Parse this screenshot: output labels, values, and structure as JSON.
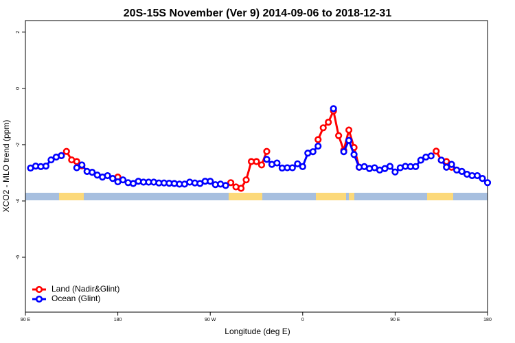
{
  "chart_data": {
    "type": "line",
    "title": "20S-15S November (Ver 9)   2014-09-06 to 2018-12-31",
    "x_label": "Longitude (deg E)",
    "y_label": "XCO2 - MLO trend (ppm)",
    "xlim": [
      90,
      540
    ],
    "xticks": [
      {
        "value": 90,
        "label": "90 E"
      },
      {
        "value": 180,
        "label": "180"
      },
      {
        "value": 270,
        "label": "90 W"
      },
      {
        "value": 360,
        "label": "0"
      },
      {
        "value": 450,
        "label": "90 E"
      },
      {
        "value": 540,
        "label": "180"
      }
    ],
    "ylim": [
      -7.95,
      2.41
    ],
    "yticks": [
      2,
      0,
      -2,
      -4,
      -6
    ],
    "legend": "bottom-left",
    "x": [
      95,
      100,
      105,
      110,
      115,
      120,
      125,
      130,
      135,
      140,
      145,
      150,
      155,
      160,
      165,
      170,
      175,
      180,
      185,
      190,
      195,
      200,
      205,
      210,
      215,
      220,
      225,
      230,
      235,
      240,
      245,
      250,
      255,
      260,
      265,
      270,
      275,
      280,
      285,
      290,
      295,
      300,
      305,
      310,
      315,
      320,
      325,
      330,
      335,
      340,
      345,
      350,
      355,
      360,
      365,
      370,
      375,
      380,
      385,
      390,
      395,
      400,
      405,
      410,
      415,
      420,
      425,
      430,
      435,
      440,
      445,
      450,
      455,
      460,
      465,
      470,
      475,
      480,
      485,
      490,
      495,
      500,
      505,
      510,
      515,
      520,
      525,
      530,
      535,
      540
    ],
    "series": [
      {
        "name": "Land (Nadir&Glint)",
        "color": "#ff0000",
        "values": [
          null,
          null,
          null,
          null,
          null,
          null,
          -2.39,
          -2.24,
          -2.54,
          -2.6,
          -2.75,
          null,
          null,
          null,
          null,
          null,
          null,
          -3.15,
          null,
          null,
          null,
          null,
          null,
          null,
          null,
          null,
          null,
          null,
          null,
          null,
          null,
          null,
          null,
          null,
          null,
          null,
          null,
          null,
          null,
          -3.35,
          -3.5,
          -3.55,
          -3.25,
          -2.6,
          -2.6,
          -2.72,
          -2.24,
          null,
          null,
          null,
          null,
          null,
          null,
          null,
          null,
          null,
          -1.82,
          -1.4,
          -1.2,
          -0.8,
          -1.68,
          -2.2,
          -1.48,
          -2.1,
          -2.8,
          null,
          null,
          null,
          null,
          null,
          null,
          null,
          null,
          null,
          null,
          null,
          null,
          null,
          null,
          -2.23,
          -2.55,
          -2.6,
          -2.8,
          null,
          null,
          null,
          null,
          null,
          null,
          null
        ]
      },
      {
        "name": "Ocean (Glint)",
        "color": "#0000ff",
        "values": [
          -2.83,
          -2.76,
          -2.78,
          -2.76,
          -2.54,
          -2.44,
          -2.39,
          null,
          null,
          -2.82,
          -2.72,
          -2.95,
          -2.98,
          -3.08,
          -3.15,
          -3.1,
          -3.2,
          -3.32,
          -3.25,
          -3.35,
          -3.38,
          -3.3,
          -3.33,
          -3.33,
          -3.33,
          -3.36,
          -3.36,
          -3.37,
          -3.38,
          -3.4,
          -3.4,
          -3.33,
          -3.36,
          -3.38,
          -3.3,
          -3.3,
          -3.42,
          -3.4,
          -3.45,
          null,
          null,
          null,
          null,
          null,
          null,
          null,
          -2.52,
          -2.7,
          -2.65,
          -2.83,
          -2.82,
          -2.82,
          -2.68,
          -2.78,
          -2.3,
          -2.25,
          -2.05,
          null,
          null,
          -0.72,
          null,
          -2.25,
          -1.85,
          -2.35,
          -2.8,
          -2.78,
          -2.85,
          -2.82,
          -2.9,
          -2.85,
          -2.77,
          -2.97,
          -2.82,
          -2.77,
          -2.78,
          -2.78,
          -2.55,
          -2.44,
          -2.4,
          null,
          -2.55,
          -2.8,
          -2.7,
          -2.9,
          -2.95,
          -3.05,
          -3.1,
          -3.1,
          -3.2,
          -3.35
        ]
      }
    ]
  }
}
